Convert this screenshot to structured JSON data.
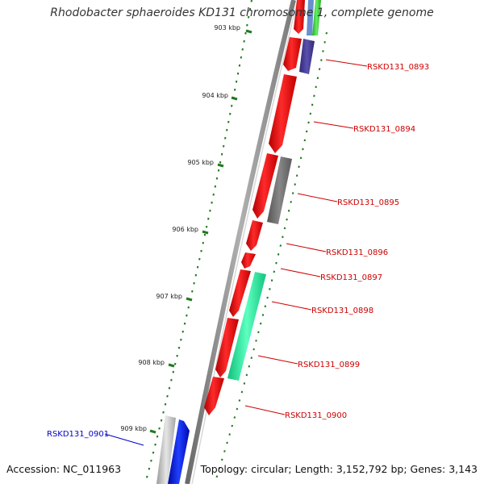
{
  "title": "Rhodobacter sphaeroides KD131 chromosome 1, complete genome",
  "accession": "Accession: NC_011963",
  "topology": "Topology: circular; Length: 3,152,792 bp; Genes: 3,143",
  "ticks": [
    "903 kbp",
    "904 kbp",
    "905 kbp",
    "906 kbp",
    "907 kbp",
    "908 kbp",
    "909 kbp"
  ],
  "genes": [
    {
      "label": "RSKD131_0893",
      "color": "#cc0000"
    },
    {
      "label": "RSKD131_0894",
      "color": "#cc0000"
    },
    {
      "label": "RSKD131_0895",
      "color": "#cc0000"
    },
    {
      "label": "RSKD131_0896",
      "color": "#cc0000"
    },
    {
      "label": "RSKD131_0897",
      "color": "#cc0000"
    },
    {
      "label": "RSKD131_0898",
      "color": "#cc0000"
    },
    {
      "label": "RSKD131_0899",
      "color": "#cc0000"
    },
    {
      "label": "RSKD131_0900",
      "color": "#cc0000"
    },
    {
      "label": "RSKD131_0901",
      "color": "#0000cc"
    }
  ],
  "colors": {
    "backbone": "#8a8a8a",
    "tick": "#1f7a1f",
    "red_feature": "#ee0000",
    "gray_feature": "#6e6e6e",
    "navy_feature": "#4a3f9a",
    "teal_feature": "#1ee69a",
    "blue_feature": "#0010ee",
    "green_feature": "#33cc33",
    "silver_feature": "#c4c4c4"
  }
}
